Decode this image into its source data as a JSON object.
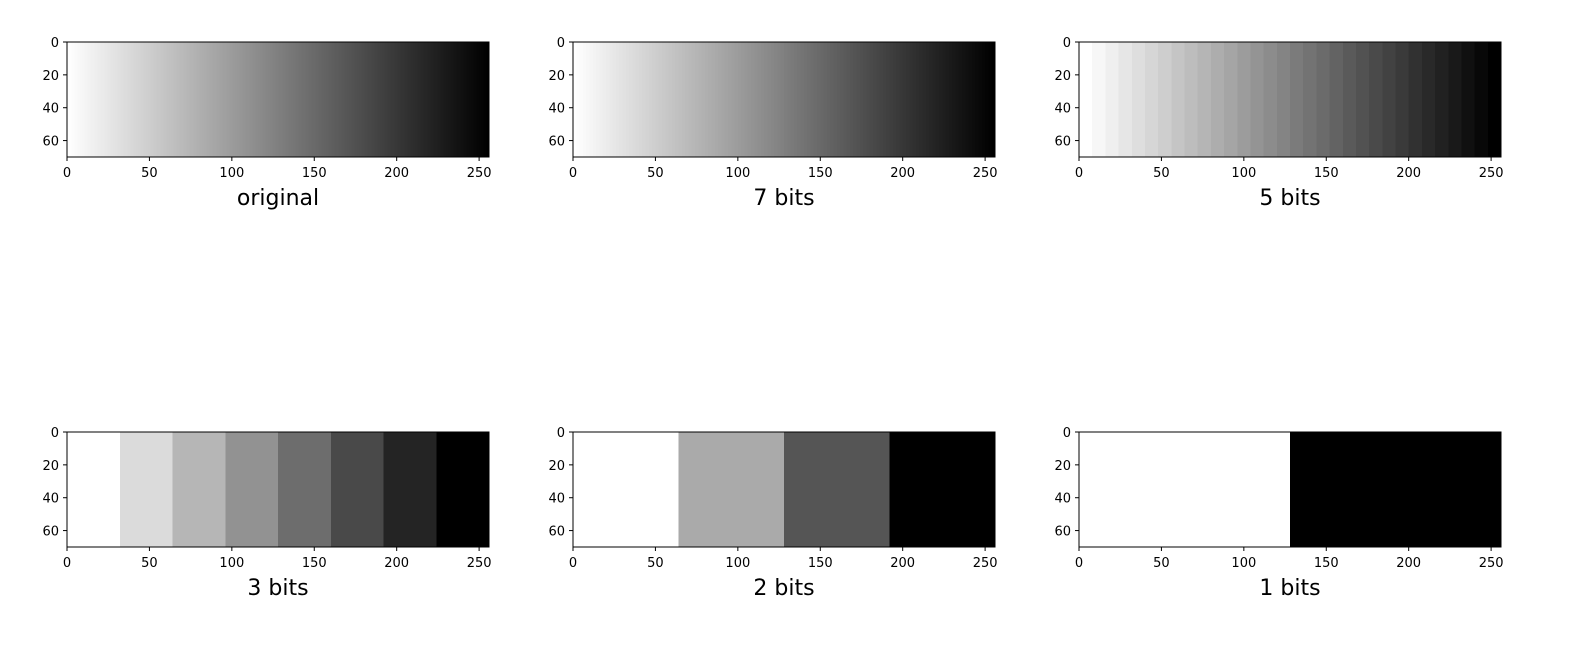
{
  "figure": {
    "colormap": "gray_r",
    "background": "#ffffff"
  },
  "chart_data": [
    {
      "type": "heatmap",
      "title": "original",
      "levels": 256,
      "x_ticks": [
        "0",
        "50",
        "100",
        "150",
        "200",
        "250"
      ],
      "y_ticks": [
        "0",
        "20",
        "40",
        "60"
      ],
      "xlim": [
        0,
        256
      ],
      "ylim": [
        70,
        0
      ],
      "grid": false
    },
    {
      "type": "heatmap",
      "title": "7 bits",
      "levels": 128,
      "x_ticks": [
        "0",
        "50",
        "100",
        "150",
        "200",
        "250"
      ],
      "y_ticks": [
        "0",
        "20",
        "40",
        "60"
      ],
      "xlim": [
        0,
        256
      ],
      "ylim": [
        70,
        0
      ],
      "grid": false
    },
    {
      "type": "heatmap",
      "title": "5 bits",
      "levels": 32,
      "x_ticks": [
        "0",
        "50",
        "100",
        "150",
        "200",
        "250"
      ],
      "y_ticks": [
        "0",
        "20",
        "40",
        "60"
      ],
      "xlim": [
        0,
        256
      ],
      "ylim": [
        70,
        0
      ],
      "grid": false
    },
    {
      "type": "heatmap",
      "title": "3 bits",
      "levels": 8,
      "x_ticks": [
        "0",
        "50",
        "100",
        "150",
        "200",
        "250"
      ],
      "y_ticks": [
        "0",
        "20",
        "40",
        "60"
      ],
      "xlim": [
        0,
        256
      ],
      "ylim": [
        70,
        0
      ],
      "grid": false
    },
    {
      "type": "heatmap",
      "title": "2 bits",
      "levels": 4,
      "x_ticks": [
        "0",
        "50",
        "100",
        "150",
        "200",
        "250"
      ],
      "y_ticks": [
        "0",
        "20",
        "40",
        "60"
      ],
      "xlim": [
        0,
        256
      ],
      "ylim": [
        70,
        0
      ],
      "grid": false
    },
    {
      "type": "heatmap",
      "title": "1 bits",
      "levels": 2,
      "x_ticks": [
        "0",
        "50",
        "100",
        "150",
        "200",
        "250"
      ],
      "y_ticks": [
        "0",
        "20",
        "40",
        "60"
      ],
      "xlim": [
        0,
        256
      ],
      "ylim": [
        70,
        0
      ],
      "grid": false
    }
  ]
}
